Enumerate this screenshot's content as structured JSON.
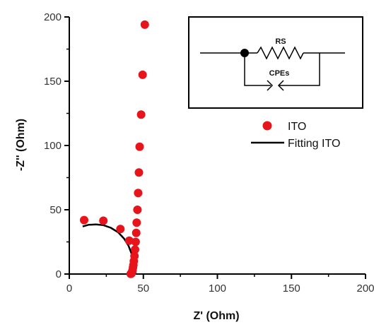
{
  "chart_data": {
    "type": "scatter",
    "xlabel": "Z' (Ohm)",
    "ylabel": "-Z'' (Ohm)",
    "xlim": [
      0,
      200
    ],
    "ylim": [
      0,
      200
    ],
    "x_ticks": [
      0,
      50,
      100,
      150,
      200
    ],
    "y_ticks": [
      0,
      50,
      100,
      150,
      200
    ],
    "grid": false,
    "legend_position": "right",
    "series": [
      {
        "name": "ITO",
        "type": "scatter",
        "color": "#e8141c",
        "points": [
          [
            51,
            194
          ],
          [
            49.5,
            155
          ],
          [
            48.5,
            124
          ],
          [
            47.5,
            99
          ],
          [
            47,
            79
          ],
          [
            46.5,
            63
          ],
          [
            46,
            50
          ],
          [
            45.5,
            40
          ],
          [
            45.2,
            32
          ],
          [
            44.8,
            25
          ],
          [
            44.4,
            19
          ],
          [
            44,
            14
          ],
          [
            43.6,
            10
          ],
          [
            43.3,
            7
          ],
          [
            43,
            5
          ],
          [
            42.7,
            3
          ],
          [
            42.4,
            1.8
          ],
          [
            42.1,
            0.8
          ],
          [
            41.8,
            0.3
          ],
          [
            41.5,
            0.1
          ],
          [
            40.5,
            26
          ],
          [
            34.5,
            35
          ],
          [
            23,
            41.5
          ],
          [
            10,
            42
          ]
        ]
      },
      {
        "name": "Fitting ITO",
        "type": "line",
        "color": "#000000",
        "points": [
          [
            9,
            37
          ],
          [
            13,
            38.3
          ],
          [
            18,
            38.6
          ],
          [
            23,
            38
          ],
          [
            28,
            36
          ],
          [
            33,
            32.5
          ],
          [
            37,
            27.5
          ],
          [
            40,
            22
          ],
          [
            42,
            16
          ],
          [
            43.3,
            10
          ],
          [
            44.1,
            6
          ],
          [
            44.5,
            3
          ],
          [
            44.7,
            1
          ],
          [
            44.7,
            0
          ]
        ]
      }
    ],
    "inset": {
      "type": "circuit",
      "labels": {
        "resistor": "RS",
        "cpe": "CPEs"
      }
    }
  }
}
